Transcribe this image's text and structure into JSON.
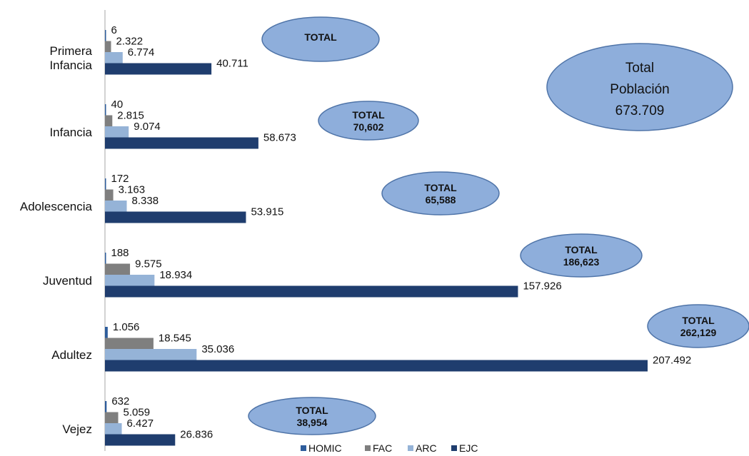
{
  "chart_data": {
    "type": "bar",
    "orientation": "horizontal",
    "categories": [
      [
        "Primera",
        "Infancia"
      ],
      [
        "Infancia"
      ],
      [
        "Adolescencia"
      ],
      [
        "Juventud"
      ],
      [
        "Adultez"
      ],
      [
        "Vejez"
      ]
    ],
    "series": [
      {
        "name": "HOMIC",
        "color": "#2e5d9c",
        "values": [
          6,
          40,
          172,
          188,
          1056,
          632
        ],
        "labels": [
          "6",
          "40",
          "172",
          "188",
          "1.056",
          "632"
        ]
      },
      {
        "name": "FAC",
        "color": "#7f7f7f",
        "values": [
          2322,
          2815,
          3163,
          9575,
          18545,
          5059
        ],
        "labels": [
          "2.322",
          "2.815",
          "3.163",
          "9.575",
          "18.545",
          "5.059"
        ]
      },
      {
        "name": "ARC",
        "color": "#95b3d7",
        "values": [
          6774,
          9074,
          8338,
          18934,
          35036,
          6427
        ],
        "labels": [
          "6.774",
          "9.074",
          "8.338",
          "18.934",
          "35.036",
          "6.427"
        ]
      },
      {
        "name": "EJC",
        "color": "#1f3d6e",
        "values": [
          40711,
          58673,
          53915,
          157926,
          207492,
          26836
        ],
        "labels": [
          "40.711",
          "58.673",
          "53.915",
          "157.926",
          "207.492",
          "26.836"
        ]
      }
    ],
    "totals": [
      {
        "label": "TOTAL",
        "value": ""
      },
      {
        "label": "TOTAL",
        "value": "70,602"
      },
      {
        "label": "TOTAL",
        "value": "65,588"
      },
      {
        "label": "TOTAL",
        "value": "186,623"
      },
      {
        "label": "TOTAL",
        "value": "262,129"
      },
      {
        "label": "TOTAL",
        "value": "38,954"
      }
    ],
    "population_total": {
      "line1": "Total",
      "line2": "Población",
      "line3": "673.709"
    },
    "xlim": [
      0,
      240000
    ],
    "grid": false,
    "legend_position": "bottom",
    "ellipse_fill": "#8eaedb",
    "ellipse_stroke": "#4f74a8"
  }
}
